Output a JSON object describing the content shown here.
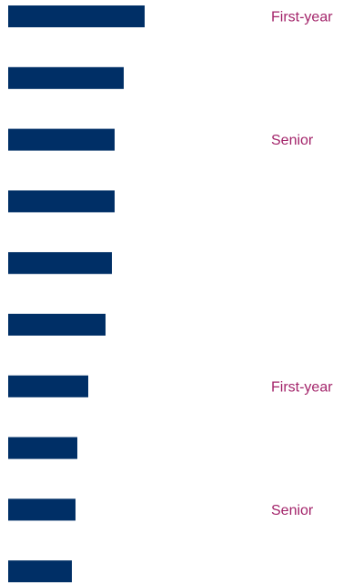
{
  "chart_data": {
    "type": "bar",
    "orientation": "horizontal",
    "categories": [
      "",
      "",
      "",
      "",
      "",
      "",
      "",
      "",
      "",
      ""
    ],
    "values": [
      150,
      127,
      117,
      117,
      114,
      107,
      88,
      76,
      74,
      70
    ],
    "row_labels": [
      "First-year",
      "",
      "Senior",
      "",
      "",
      "",
      "First-year",
      "",
      "Senior",
      ""
    ],
    "title": "",
    "xlabel": "",
    "ylabel": "",
    "grid": false,
    "legend": "none",
    "bar_color": "#002f66",
    "label_color": "#a3246a"
  }
}
